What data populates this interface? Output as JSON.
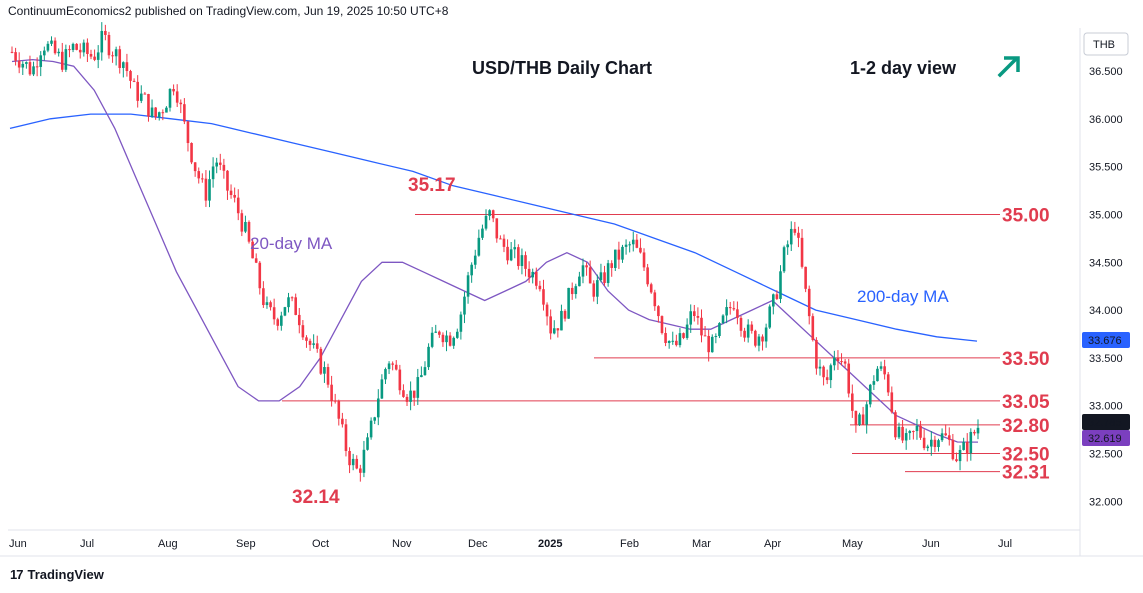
{
  "header": {
    "publisher": "ContinuumEconomics2 published on TradingView.com, Jun 19, 2025 10:50 UTC+8"
  },
  "footer": {
    "logo_text": "TradingView"
  },
  "currency_label": "THB",
  "chart_data": {
    "type": "candlestick",
    "title": "USD/THB Daily Chart",
    "view_label": "1-2 day view",
    "view_icon": "arrow-up-right-icon",
    "ylim": [
      31.7,
      36.95
    ],
    "y_ticks": [
      "36.500",
      "36.000",
      "35.500",
      "35.000",
      "34.500",
      "34.000",
      "33.500",
      "33.000",
      "32.500",
      "32.000"
    ],
    "x_ticks": [
      "Jun",
      "Jul",
      "Aug",
      "Sep",
      "Oct",
      "Nov",
      "Dec",
      "2025",
      "Feb",
      "Mar",
      "Apr",
      "May",
      "Jun",
      "Jul"
    ],
    "close_path": [
      36.7,
      36.6,
      36.5,
      36.8,
      36.7,
      36.6,
      36.75,
      36.7,
      36.65,
      36.85,
      36.7,
      36.6,
      36.3,
      36.2,
      36.0,
      36.15,
      36.4,
      35.9,
      35.5,
      35.2,
      35.6,
      35.3,
      35.1,
      34.8,
      34.4,
      34.0,
      33.9,
      34.1,
      34.0,
      33.7,
      33.5,
      33.3,
      32.9,
      32.5,
      32.3,
      32.6,
      33.1,
      33.5,
      33.3,
      33.1,
      33.2,
      33.6,
      33.8,
      33.7,
      33.9,
      34.4,
      34.8,
      35.0,
      34.7,
      34.6,
      34.5,
      34.4,
      34.3,
      33.8,
      33.9,
      34.2,
      34.5,
      34.2,
      34.3,
      34.5,
      34.6,
      34.7,
      34.5,
      34.2,
      33.8,
      33.6,
      33.7,
      34.0,
      33.7,
      33.6,
      33.9,
      34.1,
      33.8,
      33.7,
      33.8,
      34.1,
      34.6,
      34.9,
      34.2,
      33.5,
      33.2,
      33.6,
      33.4,
      32.7,
      33.0,
      33.4,
      33.3,
      32.7,
      32.6,
      32.75,
      32.6,
      32.7,
      32.65,
      32.45,
      32.6,
      32.785
    ],
    "ma20": [
      36.6,
      36.62,
      36.6,
      36.55,
      36.3,
      35.9,
      35.4,
      34.9,
      34.4,
      34.0,
      33.6,
      33.2,
      33.05,
      33.05,
      33.2,
      33.5,
      33.9,
      34.3,
      34.5,
      34.5,
      34.4,
      34.3,
      34.2,
      34.1,
      34.2,
      34.3,
      34.5,
      34.6,
      34.5,
      34.2,
      34.0,
      33.9,
      33.85,
      33.8,
      33.8,
      33.9,
      34.0,
      34.1,
      33.9,
      33.7,
      33.5,
      33.3,
      33.1,
      32.9,
      32.8,
      32.7,
      32.62,
      32.619
    ],
    "ma200": [
      35.9,
      36.0,
      36.05,
      36.05,
      36.0,
      35.95,
      35.85,
      35.75,
      35.65,
      35.55,
      35.45,
      35.3,
      35.2,
      35.1,
      35.0,
      34.9,
      34.75,
      34.6,
      34.4,
      34.2,
      34.0,
      33.9,
      33.8,
      33.72,
      33.676
    ],
    "levels": [
      {
        "value": 35.0,
        "label": "35.00"
      },
      {
        "value": 33.5,
        "label": "33.50"
      },
      {
        "value": 33.05,
        "label": "33.05"
      },
      {
        "value": 32.8,
        "label": "32.80"
      },
      {
        "value": 32.5,
        "label": "32.50"
      },
      {
        "value": 32.31,
        "label": "32.31"
      }
    ],
    "annotations": [
      {
        "text": "35.17",
        "value": 35.17
      },
      {
        "text": "32.14",
        "value": 32.14
      }
    ],
    "ma_labels": {
      "ma20": "20-day MA",
      "ma200": "200-day MA"
    },
    "price_badges": [
      {
        "value": 33.676,
        "text": "33.676",
        "color": "#2962ff"
      },
      {
        "value": 32.785,
        "text": "32.785",
        "color": "#131722"
      },
      {
        "value": 32.619,
        "text": "32.619",
        "color": "#7b3fbf"
      }
    ],
    "colors": {
      "up": "#089981",
      "down": "#f23645",
      "ma20": "#7e57c2",
      "ma200": "#2962ff",
      "level": "#e03c4f",
      "arrow": "#089981"
    }
  }
}
